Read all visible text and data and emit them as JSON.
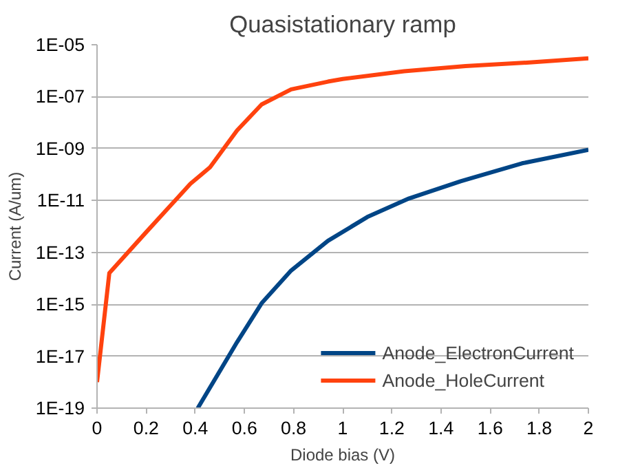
{
  "chart_data": {
    "type": "line",
    "title": "Quasistationary ramp",
    "xlabel": "Diode bias (V)",
    "ylabel": "Current (A/um)",
    "log": "y",
    "grid": "y",
    "legend": "bottom right",
    "line_style": "solid",
    "marker": "none",
    "xlim": [
      0,
      2
    ],
    "xticks": [
      0,
      0.2,
      0.4,
      0.6,
      0.8,
      1,
      1.2,
      1.4,
      1.6,
      1.8,
      2
    ],
    "ylim": [
      1e-19,
      1e-05
    ],
    "yticks": [
      {
        "value": 1e-19,
        "label": "1E-19"
      },
      {
        "value": 1e-17,
        "label": "1E-17"
      },
      {
        "value": 1e-15,
        "label": "1E-15"
      },
      {
        "value": 1e-13,
        "label": "1E-13"
      },
      {
        "value": 1e-11,
        "label": "1E-11"
      },
      {
        "value": 1e-09,
        "label": "1E-09"
      },
      {
        "value": 1e-07,
        "label": "1E-07"
      },
      {
        "value": 1e-05,
        "label": "1E-05"
      }
    ],
    "series": [
      {
        "name": "Anode_ElectronCurrent",
        "color": "#004586",
        "x": [
          0.41,
          0.57,
          0.67,
          0.79,
          0.94,
          1.1,
          1.27,
          1.48,
          1.73,
          2
        ],
        "values": [
          1e-19,
          3.5e-17,
          1.1e-15,
          2e-14,
          2.8e-13,
          2.3e-12,
          1.2e-11,
          5.5e-11,
          2.7e-10,
          9e-10
        ]
      },
      {
        "name": "Anode_HoleCurrent",
        "color": "#ff420e",
        "x": [
          0,
          0.05,
          0.2,
          0.38,
          0.46,
          0.57,
          0.67,
          0.79,
          0.94,
          1.0,
          1.25,
          1.5,
          1.77,
          2
        ],
        "values": [
          1e-18,
          1.6e-14,
          6e-13,
          4.4e-11,
          1.9e-10,
          5e-09,
          5e-08,
          1.9e-07,
          3.8e-07,
          4.8e-07,
          9.5e-07,
          1.5e-06,
          2.1e-06,
          3e-06
        ]
      }
    ]
  }
}
